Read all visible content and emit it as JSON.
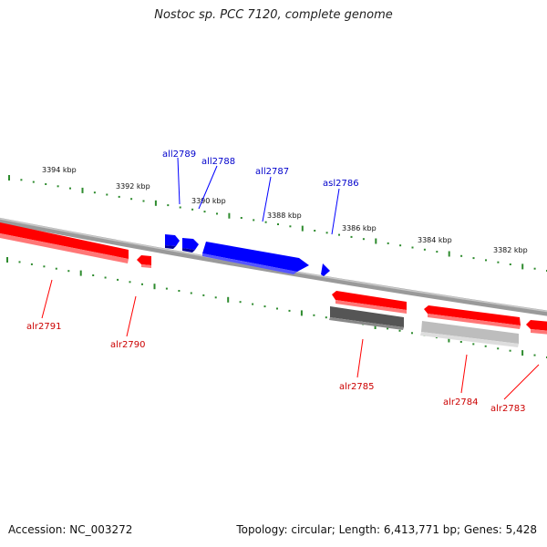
{
  "title": "Nostoc sp. PCC 7120, complete genome",
  "footer": {
    "accession": "Accession: NC_003272",
    "summary": "Topology: circular; Length: 6,413,771 bp; Genes: 5,428"
  },
  "colors": {
    "backbone": "#7a7a7a",
    "tick": "#2e8b2e",
    "forward_gene": "#0000ff",
    "reverse_gene": "#ff0000",
    "forward_label": "#0000cc",
    "reverse_label": "#cc0000",
    "pseudo_dark": "#555555",
    "pseudo_light": "#bdbdbd"
  },
  "scale_labels": [
    "3394 kbp",
    "3392 kbp",
    "3390 kbp",
    "3388 kbp",
    "3386 kbp",
    "3384 kbp",
    "3382 kbp"
  ],
  "genes_top": [
    {
      "name": "all2789"
    },
    {
      "name": "all2788"
    },
    {
      "name": "all2787"
    },
    {
      "name": "asl2786"
    }
  ],
  "genes_bottom": [
    {
      "name": "alr2791"
    },
    {
      "name": "alr2790"
    },
    {
      "name": "alr2785"
    },
    {
      "name": "alr2784"
    },
    {
      "name": "alr2783"
    }
  ]
}
